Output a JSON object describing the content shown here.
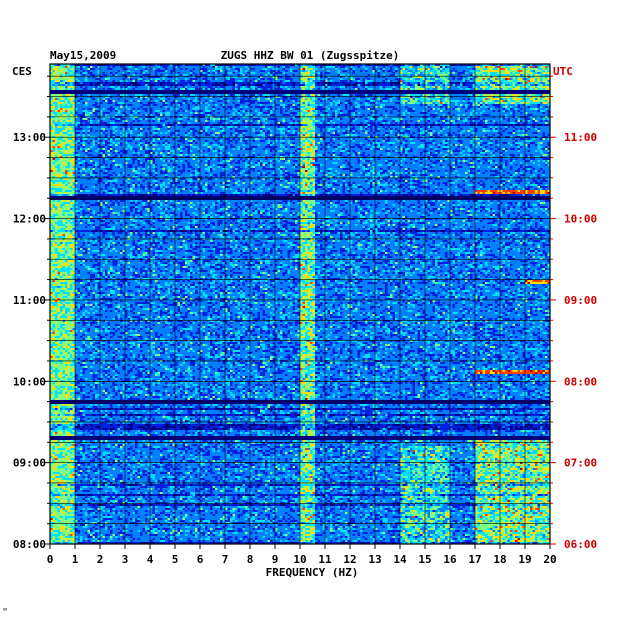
{
  "chart_data": {
    "type": "heatmap",
    "header": {
      "date": "May15,2009",
      "station": "ZUGS HHZ BW 01 (Zugsspitze)"
    },
    "left_tz": "CES",
    "right_tz": "UTC",
    "xlabel": "FREQUENCY (HZ)",
    "x_ticks": [
      0,
      1,
      2,
      3,
      4,
      5,
      6,
      7,
      8,
      9,
      10,
      11,
      12,
      13,
      14,
      15,
      16,
      17,
      18,
      19,
      20
    ],
    "xlim": [
      0,
      20
    ],
    "ylim_hours_local": [
      8,
      13.9
    ],
    "y_ticks_local": [
      {
        "hour": 8,
        "label": "08:00"
      },
      {
        "hour": 9,
        "label": "09:00"
      },
      {
        "hour": 10,
        "label": "10:00"
      },
      {
        "hour": 11,
        "label": "11:00"
      },
      {
        "hour": 12,
        "label": "12:00"
      },
      {
        "hour": 13,
        "label": "13:00"
      }
    ],
    "y_ticks_utc": [
      {
        "hour": 8,
        "label": "06:00"
      },
      {
        "hour": 9,
        "label": "07:00"
      },
      {
        "hour": 10,
        "label": "08:00"
      },
      {
        "hour": 11,
        "label": "09:00"
      },
      {
        "hour": 12,
        "label": "10:00"
      },
      {
        "hour": 13,
        "label": "11:00"
      }
    ],
    "time_axis_direction": "upward",
    "grid": true,
    "colormap": [
      "#00007f",
      "#0020e0",
      "#0080ff",
      "#00e0ff",
      "#80ff80",
      "#ffe000",
      "#ff4000",
      "#c00000"
    ],
    "colors": {
      "left_axis": "#000000",
      "right_axis": "#cc0000",
      "grid": "#000000"
    },
    "dark_time_bands_local": [
      13.55,
      12.25,
      9.75,
      9.3
    ],
    "strong_events": [
      {
        "time_local": 12.33,
        "f_start": 17,
        "f_end": 20
      },
      {
        "time_local": 11.22,
        "f_start": 19,
        "f_end": 20
      },
      {
        "time_local": 10.12,
        "f_start": 17,
        "f_end": 20
      }
    ],
    "notes": "Continuous seismic noise spectrogram; persistent energy at 10-10.5 Hz and 14-20 Hz"
  },
  "corner_mark": "ʷ"
}
